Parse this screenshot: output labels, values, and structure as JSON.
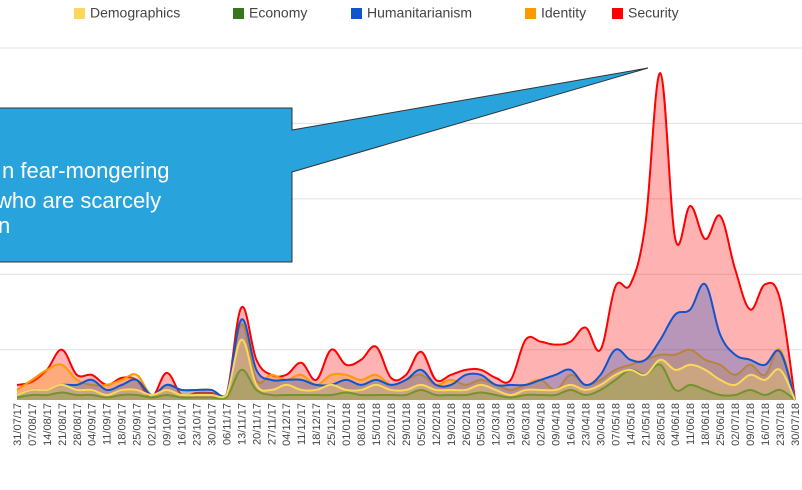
{
  "chart_data": {
    "type": "area",
    "categories": [
      "31/07/17",
      "07/08/17",
      "14/08/17",
      "21/08/17",
      "28/08/17",
      "04/09/17",
      "11/09/17",
      "18/09/17",
      "25/09/17",
      "02/10/17",
      "09/10/17",
      "16/10/17",
      "23/10/17",
      "30/10/17",
      "06/11/17",
      "13/11/17",
      "20/11/17",
      "27/11/17",
      "04/12/17",
      "11/12/17",
      "18/12/17",
      "25/12/17",
      "01/01/18",
      "08/01/18",
      "15/01/18",
      "22/01/18",
      "29/01/18",
      "05/02/18",
      "12/02/18",
      "19/02/18",
      "26/02/18",
      "05/03/18",
      "12/03/18",
      "19/03/18",
      "26/03/18",
      "02/04/18",
      "09/04/18",
      "16/04/18",
      "23/04/18",
      "30/04/18",
      "07/05/18",
      "14/05/18",
      "21/05/18",
      "28/05/18",
      "04/06/18",
      "11/06/18",
      "18/06/18",
      "25/06/18",
      "02/07/18",
      "09/07/18",
      "16/07/18",
      "23/07/18",
      "30/07/18"
    ],
    "series": [
      {
        "name": "Demographics",
        "color": "#fbd75b",
        "values": [
          1,
          2,
          2,
          3,
          2,
          2,
          1,
          2,
          2,
          1,
          2,
          1,
          1,
          1,
          1,
          12,
          3,
          2,
          3,
          2,
          2,
          3,
          2,
          2,
          3,
          2,
          2,
          3,
          2,
          2,
          2,
          3,
          2,
          1,
          2,
          2,
          2,
          3,
          2,
          3,
          5,
          6,
          5,
          8,
          6,
          7,
          6,
          4,
          3,
          5,
          4,
          6,
          0
        ]
      },
      {
        "name": "Economy",
        "color": "#38761d",
        "values": [
          0.5,
          1,
          1,
          1.5,
          1,
          1,
          0.5,
          1,
          1,
          0.5,
          1,
          0.5,
          0.5,
          0.5,
          0.5,
          6,
          2,
          1,
          1,
          1,
          1,
          1,
          1.5,
          1,
          1,
          1,
          1,
          2,
          1,
          1,
          1,
          1.5,
          1,
          0.5,
          1,
          1,
          1,
          2,
          1,
          2,
          4,
          6,
          5,
          7,
          2,
          3,
          2,
          1,
          1,
          2,
          1,
          2,
          0
        ]
      },
      {
        "name": "Humanitarianism",
        "color": "#1155cc",
        "values": [
          1,
          2,
          2,
          3,
          3,
          4,
          2,
          3,
          4,
          1,
          3,
          2,
          2,
          2,
          1,
          16,
          6,
          4,
          4,
          4,
          3,
          3,
          4,
          3,
          4,
          3,
          4,
          6,
          3,
          3,
          5,
          5,
          3,
          3,
          3,
          4,
          5,
          6,
          3,
          5,
          10,
          8,
          8,
          12,
          17,
          18,
          23,
          13,
          9,
          8,
          7,
          9.6,
          0
        ]
      },
      {
        "name": "Identity",
        "color": "#ff9900",
        "values": [
          2,
          4,
          6,
          7,
          4,
          3,
          3,
          4,
          5,
          1,
          3,
          2,
          2,
          2,
          1,
          15,
          4,
          5,
          4,
          5,
          3,
          5,
          5,
          4,
          5,
          3,
          4,
          5,
          3,
          4,
          3,
          4,
          3,
          2,
          3,
          4,
          2,
          5,
          3,
          4,
          6,
          7,
          8,
          9,
          9,
          10,
          8,
          7,
          5,
          7,
          5,
          10,
          0
        ]
      },
      {
        "name": "Security",
        "color": "#ff0000",
        "values": [
          3,
          3.6,
          6,
          10,
          5,
          5,
          3,
          4.4,
          4,
          0.5,
          5.4,
          1,
          1.4,
          1.4,
          1,
          18.4,
          8,
          5,
          5,
          7.4,
          4,
          10,
          7,
          8,
          10.6,
          4.4,
          5,
          9.6,
          4,
          5,
          6,
          6,
          4.4,
          4,
          12,
          11.6,
          11,
          11.6,
          14.4,
          10,
          22.6,
          23,
          35,
          65,
          32,
          38.6,
          32,
          36.6,
          26,
          18,
          23,
          20,
          0
        ]
      }
    ],
    "ylim": [
      0,
      70
    ],
    "yticks": [
      10,
      25,
      40,
      55,
      70
    ],
    "grid": true,
    "legend": "top",
    "annotation": {
      "lines": [
        "n fear-mongering",
        "who are scarcely",
        "n"
      ],
      "color": "#29a3dc"
    }
  }
}
